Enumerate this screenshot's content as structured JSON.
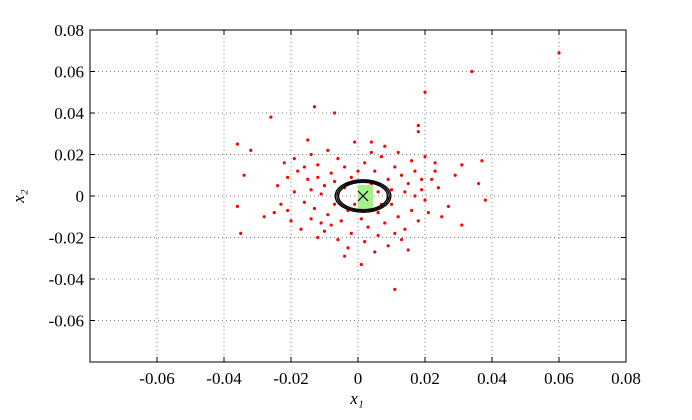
{
  "chart_data": {
    "type": "scatter",
    "xlabel": "x₁",
    "ylabel": "x₂",
    "xlim": [
      -0.08,
      0.08
    ],
    "ylim": [
      -0.08,
      0.08
    ],
    "xticks": [
      -0.06,
      -0.04,
      -0.02,
      0,
      0.02,
      0.04,
      0.06,
      0.08
    ],
    "yticks": [
      -0.06,
      -0.04,
      -0.02,
      0,
      0.02,
      0.04,
      0.06,
      0.08
    ],
    "grid": true,
    "color": "#ff0000",
    "x": [
      0.06,
      0.034,
      0.02,
      -0.013,
      -0.026,
      -0.007,
      0.018,
      0.018,
      0.037,
      0.038,
      0.036,
      0.029,
      0.024,
      0.023,
      0.027,
      0.031,
      0.011,
      0.001,
      -0.004,
      -0.035,
      -0.036,
      -0.036,
      -0.034,
      -0.032,
      -0.028,
      -0.022,
      -0.021,
      0.031,
      0.008,
      -0.001,
      0.004,
      -0.015,
      0.015,
      -0.012,
      0.02,
      -0.018,
      -0.015,
      -0.012,
      -0.01,
      -0.008,
      -0.006,
      -0.004,
      -0.002,
      0.002,
      0.005,
      0.007,
      0.009,
      0.011,
      0.013,
      0.015,
      0.017,
      0.019,
      -0.019,
      -0.016,
      -0.013,
      -0.011,
      -0.009,
      -0.007,
      -0.005,
      -0.003,
      0.001,
      0.003,
      0.006,
      0.008,
      0.01,
      0.012,
      0.014,
      0.016,
      0.018,
      0.02,
      -0.02,
      -0.017,
      -0.014,
      -0.01,
      -0.006,
      -0.002,
      0.002,
      0.006,
      0.009,
      0.013,
      -0.024,
      -0.023,
      0.022,
      0.021,
      -0.014,
      0.012,
      -0.009,
      0.004,
      -0.011,
      0.007,
      -0.004,
      0.004,
      -0.001,
      0.006,
      -0.006,
      0.01,
      -0.012,
      0.014,
      -0.016,
      0.016,
      -0.008,
      0.011,
      -0.003,
      0.005,
      -0.019,
      0.023,
      -0.025,
      0.025,
      -0.007,
      0.009,
      0,
      0.001,
      -0.014,
      0.017,
      -0.021,
      0.019
    ],
    "values": [
      0.069,
      0.06,
      0.05,
      0.043,
      0.038,
      0.04,
      0.034,
      0.031,
      0.017,
      -0.002,
      0.006,
      0.01,
      0.004,
      0.016,
      -0.005,
      -0.014,
      -0.045,
      -0.033,
      -0.029,
      -0.018,
      -0.005,
      0.025,
      0.01,
      0.022,
      -0.01,
      0.016,
      -0.007,
      0.015,
      0.024,
      0.026,
      0.026,
      0.027,
      -0.026,
      -0.02,
      0.019,
      0.012,
      0.008,
      0.015,
      0.005,
      0.011,
      0.018,
      0.014,
      0.009,
      0.016,
      0.012,
      0.019,
      0.008,
      0.014,
      0.01,
      0.006,
      0.012,
      0.003,
      0.002,
      -0.003,
      -0.006,
      0.001,
      -0.009,
      -0.004,
      -0.012,
      -0.007,
      -0.011,
      -0.015,
      -0.008,
      -0.013,
      -0.004,
      -0.01,
      -0.016,
      -0.007,
      -0.012,
      -0.002,
      -0.012,
      -0.016,
      -0.011,
      -0.017,
      -0.021,
      -0.018,
      -0.022,
      -0.019,
      -0.024,
      -0.021,
      0.005,
      -0.004,
      0.008,
      -0.008,
      0.02,
      0.021,
      0.022,
      0.021,
      -0.013,
      -0.004,
      0.004,
      0.006,
      -0.004,
      0.002,
      0.001,
      0.003,
      0.009,
      0.002,
      0.014,
      0.017,
      -0.014,
      -0.018,
      -0.025,
      -0.027,
      0.018,
      0.012,
      -0.008,
      -0.01,
      0.007,
      -0.001,
      0.012,
      0.004,
      0.003,
      0,
      0.009,
      0.008
    ],
    "ellipses": [
      {
        "cx": 0.0015,
        "cy": 0,
        "rx": 0.0083,
        "ry": 0.0078
      },
      {
        "cx": 0.0015,
        "cy": 0,
        "rx": 0.0078,
        "ry": 0.0072
      },
      {
        "cx": 0.0015,
        "cy": 0,
        "rx": 0.0073,
        "ry": 0.0066
      }
    ],
    "box": {
      "x0": 0,
      "x1": 0.0045,
      "y0": -0.0063,
      "y1": 0.0053,
      "color": "#a6f08a"
    },
    "marker": {
      "x": 0.0015,
      "y": 0
    }
  }
}
